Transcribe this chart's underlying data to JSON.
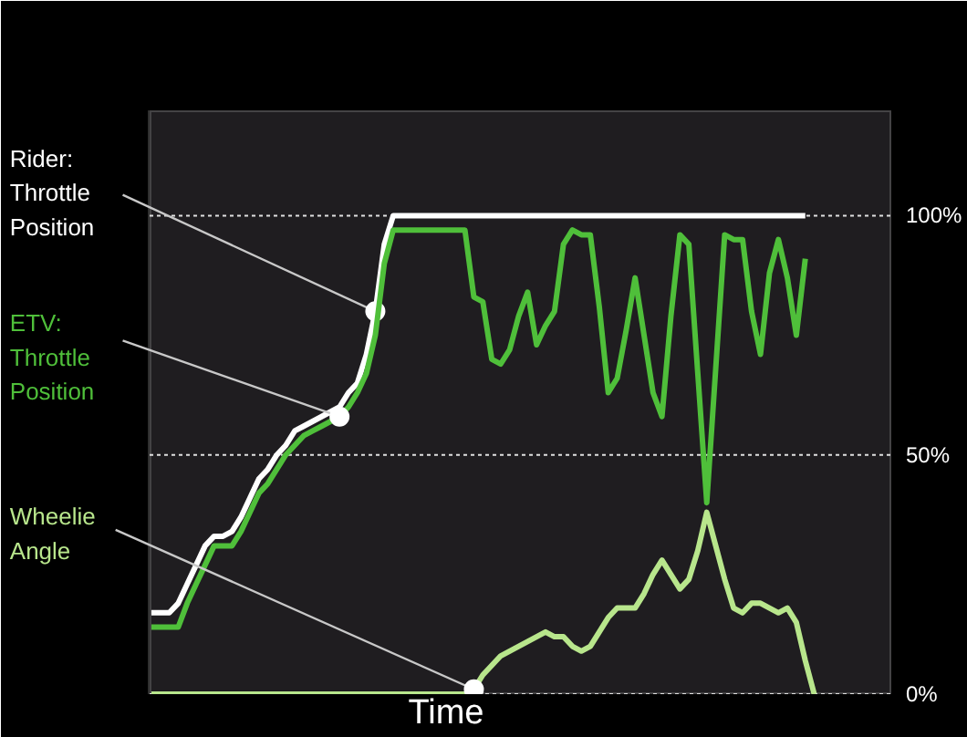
{
  "chart_data": {
    "type": "line",
    "xlabel": "Time",
    "categories": [
      null,
      null,
      null,
      null,
      null,
      null,
      null,
      null,
      null,
      null,
      null,
      null,
      null,
      null,
      null,
      null,
      null,
      null,
      null,
      null,
      null,
      null,
      null,
      null,
      null,
      null,
      null,
      null,
      null,
      null,
      null,
      null,
      null,
      null,
      null,
      null,
      null,
      null,
      null,
      null,
      null,
      null,
      null,
      null,
      null,
      null,
      null,
      null,
      null,
      null,
      null,
      null,
      null,
      null,
      null,
      null,
      null,
      null,
      null,
      null,
      null,
      null,
      null,
      null,
      null,
      null,
      null,
      null,
      null,
      null,
      null,
      null,
      null,
      null,
      null
    ],
    "ylim": [
      0,
      122
    ],
    "yticks": [
      {
        "value": 0,
        "label": "0%"
      },
      {
        "value": 50,
        "label": "50%"
      },
      {
        "value": 100,
        "label": "100%"
      }
    ],
    "grid": "y",
    "legend": false,
    "series": [
      {
        "name": "Rider: Throttle Position",
        "color": "#ffffff",
        "values": [
          17,
          17,
          17,
          19,
          23,
          27,
          31,
          33,
          33,
          34,
          37,
          41,
          45,
          47,
          50,
          52,
          55,
          56,
          57,
          58,
          59,
          60,
          63,
          65,
          71,
          80,
          94,
          100,
          100,
          100,
          100,
          100,
          100,
          100,
          100,
          100,
          100,
          100,
          100,
          100,
          100,
          100,
          100,
          100,
          100,
          100,
          100,
          100,
          100,
          100,
          100,
          100,
          100,
          100,
          100,
          100,
          100,
          100,
          100,
          100,
          100,
          100,
          100,
          100,
          100,
          100,
          100,
          100,
          100,
          100,
          100,
          100,
          100,
          100,
          null
        ]
      },
      {
        "name": "ETV: Throttle Position",
        "color": "#4fbf3a",
        "values": [
          14,
          14,
          14,
          14,
          19,
          23,
          27,
          31,
          31,
          31,
          34,
          38,
          42,
          44,
          47,
          50,
          52,
          54,
          55,
          56,
          57,
          58,
          60,
          63,
          67,
          75,
          90,
          97,
          97,
          97,
          97,
          97,
          97,
          97,
          97,
          97,
          83,
          82,
          70,
          69,
          72,
          79,
          84,
          73,
          77,
          80,
          94,
          97,
          96,
          96,
          81,
          63,
          66,
          76,
          87,
          75,
          63,
          58,
          79,
          96,
          94,
          67,
          40,
          68,
          96,
          95,
          95,
          80,
          71,
          88,
          95,
          87,
          75,
          91,
          null
        ]
      },
      {
        "name": "Wheelie Angle",
        "color": "#b8e68c",
        "values": [
          0,
          0,
          0,
          0,
          0,
          0,
          0,
          0,
          0,
          0,
          0,
          0,
          0,
          0,
          0,
          0,
          0,
          0,
          0,
          0,
          0,
          0,
          0,
          0,
          0,
          0,
          0,
          0,
          0,
          0,
          0,
          0,
          0,
          0,
          0,
          0,
          1,
          4,
          6,
          8,
          9,
          10,
          11,
          12,
          13,
          12,
          12,
          10,
          9,
          10,
          13,
          16,
          18,
          18,
          18,
          21,
          25,
          28,
          25,
          22,
          24,
          30,
          38,
          31,
          24,
          18,
          17,
          19,
          19,
          18,
          17,
          18,
          15,
          7,
          0
        ]
      }
    ]
  }
}
